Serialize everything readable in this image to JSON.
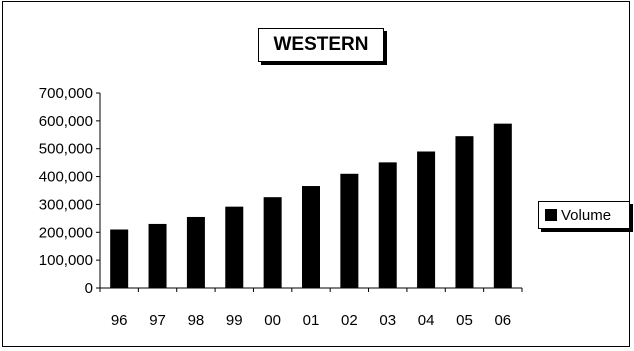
{
  "chart_data": {
    "type": "bar",
    "title": "WESTERN",
    "categories": [
      "96",
      "97",
      "98",
      "99",
      "00",
      "01",
      "02",
      "03",
      "04",
      "05",
      "06"
    ],
    "series": [
      {
        "name": "Volume",
        "values": [
          210000,
          230000,
          255000,
          292000,
          326000,
          366000,
          410000,
          451000,
          490000,
          545000,
          590000
        ],
        "color": "#000000"
      }
    ],
    "ylim": [
      0,
      700000
    ],
    "yticks": [
      "0",
      "100,000",
      "200,000",
      "300,000",
      "400,000",
      "500,000",
      "600,000",
      "700,000"
    ],
    "grid": false,
    "legend": "right"
  }
}
